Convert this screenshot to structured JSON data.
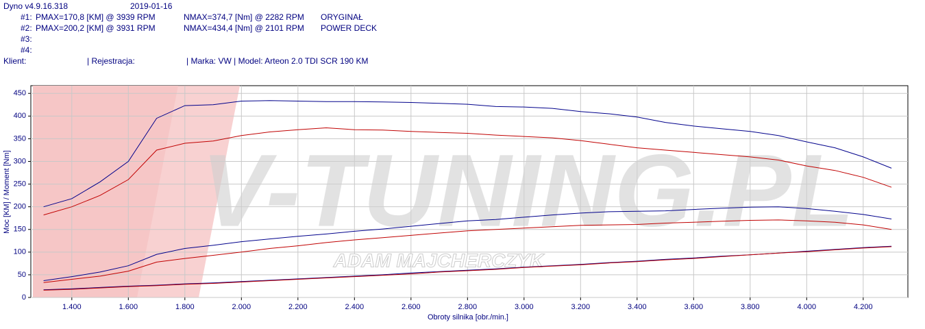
{
  "chart_data": {
    "type": "line",
    "header": {
      "version": "Dyno v4.9.16.318",
      "date": "2019-01-16",
      "runs": [
        {
          "id": "#1:",
          "power": "PMAX=170,8 [KM] @ 3939 RPM",
          "torque": "NMAX=374,7 [Nm] @ 2282 RPM",
          "label": "ORYGINAŁ"
        },
        {
          "id": "#2:",
          "power": "PMAX=200,2 [KM] @ 3931 RPM",
          "torque": "NMAX=434,4 [Nm] @ 2101 RPM",
          "label": "POWER DECK"
        },
        {
          "id": "#3:"
        },
        {
          "id": "#4:"
        }
      ],
      "client_line": [
        "Klient:",
        "| Rejestracja:",
        "| Marka: VW | Model: Arteon 2.0 TDI SCR 190 KM"
      ]
    },
    "watermark": {
      "text": "V-TUNING.PL",
      "subtitle": "ADAM MAJCHERCZYK"
    },
    "x_label": "Obroty silnika [obr./min.]",
    "y_label": "Moc [KM] / Moment [Nm]",
    "x": [
      1300,
      1400,
      1500,
      1600,
      1700,
      1800,
      1900,
      2000,
      2100,
      2200,
      2300,
      2400,
      2500,
      2600,
      2700,
      2800,
      2900,
      3000,
      3100,
      3200,
      3300,
      3400,
      3500,
      3600,
      3700,
      3800,
      3900,
      4000,
      4100,
      4200,
      4300
    ],
    "series": [
      {
        "color": "#00008b",
        "values": [
          200,
          218,
          255,
          300,
          395,
          423,
          425,
          433,
          434,
          433,
          432,
          432,
          431,
          430,
          428,
          426,
          421,
          420,
          417,
          410,
          405,
          398,
          386,
          378,
          372,
          366,
          357,
          343,
          330,
          310,
          285
        ]
      },
      {
        "color": "#c00000",
        "values": [
          182,
          200,
          225,
          260,
          325,
          340,
          345,
          357,
          365,
          370,
          374,
          370,
          369,
          366,
          364,
          362,
          358,
          355,
          352,
          346,
          338,
          330,
          325,
          320,
          315,
          310,
          303,
          290,
          280,
          265,
          243
        ]
      },
      {
        "color": "#00008b",
        "values": [
          37,
          46,
          56,
          70,
          95,
          108,
          115,
          123,
          129,
          135,
          140,
          146,
          151,
          157,
          163,
          169,
          172,
          177,
          182,
          186,
          189,
          190,
          191,
          194,
          197,
          199,
          200,
          196,
          190,
          183,
          173
        ]
      },
      {
        "color": "#c00000",
        "values": [
          33,
          40,
          47,
          58,
          78,
          86,
          93,
          100,
          108,
          114,
          121,
          127,
          132,
          137,
          142,
          147,
          150,
          153,
          156,
          159,
          160,
          161,
          164,
          166,
          168,
          170,
          171,
          169,
          166,
          160,
          150
        ]
      },
      {
        "color": "#00008b",
        "values": [
          17,
          19,
          22,
          25,
          27,
          30,
          32,
          35,
          38,
          41,
          44,
          47,
          50,
          54,
          57,
          60,
          63,
          67,
          70,
          73,
          77,
          80,
          84,
          87,
          91,
          94,
          98,
          102,
          106,
          110,
          113
        ]
      },
      {
        "color": "#c00000",
        "values": [
          16,
          18,
          21,
          24,
          26,
          29,
          31,
          34,
          37,
          40,
          43,
          46,
          49,
          52,
          56,
          59,
          62,
          66,
          69,
          72,
          76,
          79,
          83,
          86,
          90,
          94,
          98,
          101,
          105,
          109,
          112
        ]
      }
    ],
    "xlim": [
      1255,
      4358
    ],
    "ylim": [
      0,
      467
    ],
    "xticks": [
      {
        "value": 1400,
        "label": "1.400"
      },
      {
        "value": 1600,
        "label": "1.600"
      },
      {
        "value": 1800,
        "label": "1.800"
      },
      {
        "value": 2000,
        "label": "2.000"
      },
      {
        "value": 2200,
        "label": "2.200"
      },
      {
        "value": 2400,
        "label": "2.400"
      },
      {
        "value": 2600,
        "label": "2.600"
      },
      {
        "value": 2800,
        "label": "2.800"
      },
      {
        "value": 3000,
        "label": "3.000"
      },
      {
        "value": 3200,
        "label": "3.200"
      },
      {
        "value": 3400,
        "label": "3.400"
      },
      {
        "value": 3600,
        "label": "3.600"
      },
      {
        "value": 3800,
        "label": "3.800"
      },
      {
        "value": 4000,
        "label": "4.000"
      },
      {
        "value": 4200,
        "label": "4.200"
      }
    ],
    "yticks": [
      0,
      50,
      100,
      150,
      200,
      250,
      300,
      350,
      400,
      450
    ],
    "grid": true
  }
}
